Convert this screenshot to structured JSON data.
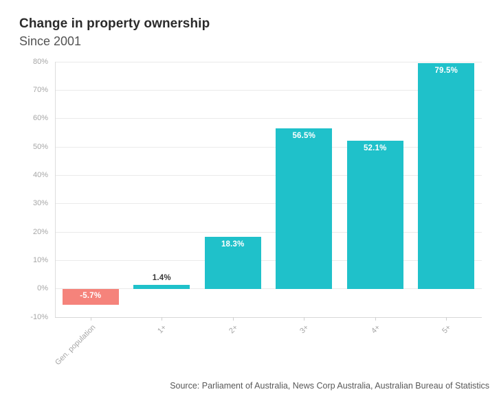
{
  "header": {
    "title": "Change in property ownership",
    "subtitle": "Since 2001"
  },
  "footer": {
    "source": "Source: Parliament of Australia, News Corp Australia, Australian Bureau of Statistics"
  },
  "chart_data": {
    "type": "bar",
    "title": "Change in property ownership",
    "subtitle": "Since 2001",
    "categories": [
      "Gen. population",
      "1+",
      "2+",
      "3+",
      "4+",
      "5+"
    ],
    "values": [
      -5.7,
      1.4,
      18.3,
      56.5,
      52.1,
      79.5
    ],
    "data_labels": [
      "-5.7%",
      "1.4%",
      "18.3%",
      "56.5%",
      "52.1%",
      "79.5%"
    ],
    "xlabel": "",
    "ylabel": "",
    "ylim": [
      -10,
      80
    ],
    "ytick_values": [
      80,
      70,
      60,
      50,
      40,
      30,
      20,
      10,
      0,
      -10
    ],
    "ytick_labels": [
      "80%",
      "70%",
      "60%",
      "50%",
      "40%",
      "30%",
      "20%",
      "10%",
      "0%",
      "-10%"
    ],
    "grid": true,
    "legend": "none",
    "colors": {
      "positive_bar": "#1fc1ca",
      "negative_bar": "#f5837b",
      "label_inside": "#ffffff",
      "label_outside": "#3a3a3a"
    }
  }
}
